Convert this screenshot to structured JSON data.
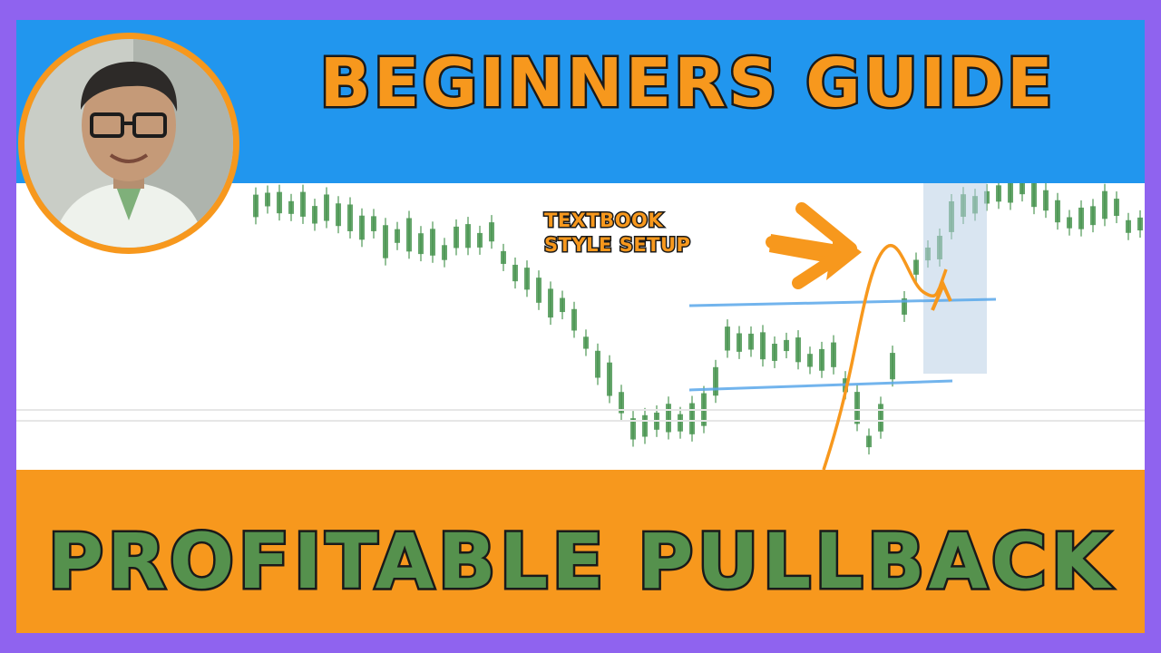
{
  "thumbnail": {
    "title_top": "BEGINNERS GUIDE",
    "title_bottom": "PROFITABLE PULLBACK",
    "callout_line1": "TEXTBOOK",
    "callout_line2": "STYLE SETUP"
  },
  "colors": {
    "frame": "#8f63ef",
    "top_band": "#2196ee",
    "bottom_band": "#f7981d",
    "accent_orange": "#f7981d",
    "title_bottom_fill": "#55914d",
    "candle_green": "#3f8f46",
    "level_line_blue": "#5aa8ea"
  },
  "icons": {
    "presenter_avatar": "presenter-photo",
    "pointer_arrow": "arrow-right-icon"
  }
}
